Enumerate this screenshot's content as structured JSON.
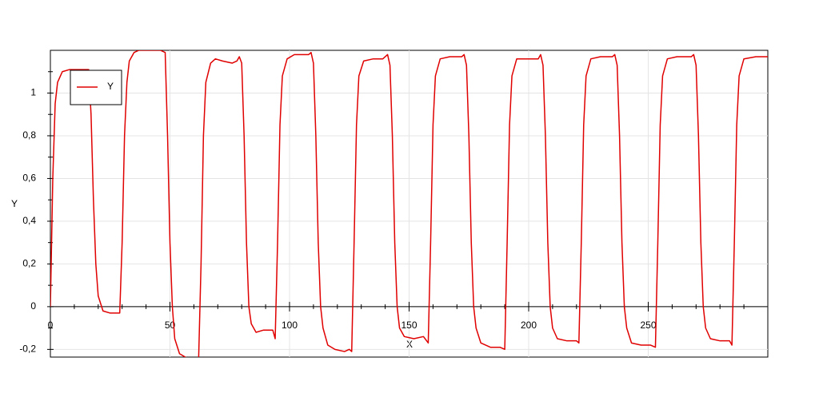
{
  "chart_data": {
    "type": "line",
    "x_label": "X",
    "y_label": "Y",
    "xlim": [
      0,
      300
    ],
    "ylim": [
      -0.236,
      1.2
    ],
    "xticks": [
      0,
      50,
      100,
      150,
      200,
      250
    ],
    "xticks_minor": [
      10,
      20,
      30,
      40,
      60,
      70,
      80,
      90,
      110,
      120,
      130,
      140,
      160,
      170,
      180,
      190,
      210,
      220,
      230,
      240,
      260,
      270,
      280,
      290
    ],
    "yticks": [
      {
        "value": -0.2,
        "label": "-0,2"
      },
      0,
      {
        "value": 0.2,
        "label": "0,2"
      },
      {
        "value": 0.4,
        "label": "0,4"
      },
      {
        "value": 0.6,
        "label": "0,6"
      },
      {
        "value": 0.8,
        "label": "0,8"
      },
      1
    ],
    "yticks_minor": [
      -0.1,
      0.1,
      0.3,
      0.5,
      0.7,
      0.9,
      1.1
    ],
    "grid": true,
    "legend": "upper left",
    "series": [
      {
        "name": "Y",
        "color": "#e00000",
        "x": [
          0,
          1,
          2,
          3,
          5,
          8,
          16,
          17,
          18,
          19,
          20,
          22,
          25,
          29,
          30,
          31,
          32,
          33,
          35,
          37,
          46,
          48,
          49,
          50,
          51,
          52,
          54,
          57,
          62,
          63,
          64,
          65,
          67,
          69,
          72,
          76,
          78,
          79,
          80,
          81,
          82,
          83,
          84,
          86,
          89,
          93,
          94,
          95,
          96,
          97,
          99,
          102,
          108,
          109,
          110,
          111,
          112,
          113,
          114,
          116,
          119,
          123,
          125,
          126,
          127,
          128,
          129,
          131,
          135,
          139,
          141,
          142,
          143,
          144,
          145,
          146,
          148,
          152,
          156,
          158,
          159,
          160,
          161,
          163,
          167,
          172,
          173,
          174,
          175,
          176,
          177,
          178,
          180,
          184,
          188,
          190,
          191,
          192,
          193,
          195,
          199,
          204,
          205,
          206,
          207,
          208,
          209,
          210,
          212,
          216,
          220,
          221,
          222,
          223,
          224,
          226,
          230,
          235,
          236,
          237,
          238,
          239,
          240,
          241,
          243,
          247,
          251,
          253,
          254,
          255,
          256,
          258,
          262,
          268,
          269,
          270,
          271,
          272,
          273,
          274,
          276,
          280,
          284,
          285,
          286,
          287,
          288,
          290,
          295,
          300
        ],
        "values": [
          0,
          0.6,
          0.95,
          1.05,
          1.1,
          1.11,
          1.11,
          0.9,
          0.5,
          0.2,
          0.05,
          -0.02,
          -0.03,
          -0.03,
          0.3,
          0.8,
          1.05,
          1.15,
          1.19,
          1.2,
          1.2,
          1.19,
          0.8,
          0.3,
          0,
          -0.15,
          -0.22,
          -0.24,
          -0.24,
          0.2,
          0.8,
          1.05,
          1.14,
          1.16,
          1.15,
          1.14,
          1.15,
          1.17,
          1.14,
          0.8,
          0.3,
          0,
          -0.08,
          -0.12,
          -0.11,
          -0.11,
          -0.15,
          0.3,
          0.85,
          1.08,
          1.16,
          1.18,
          1.18,
          1.19,
          1.14,
          0.8,
          0.3,
          0,
          -0.1,
          -0.18,
          -0.2,
          -0.21,
          -0.2,
          -0.21,
          0.3,
          0.85,
          1.08,
          1.15,
          1.16,
          1.16,
          1.18,
          1.13,
          0.8,
          0.3,
          0,
          -0.1,
          -0.14,
          -0.15,
          -0.14,
          -0.17,
          0.3,
          0.85,
          1.08,
          1.16,
          1.17,
          1.17,
          1.18,
          1.13,
          0.8,
          0.3,
          0,
          -0.1,
          -0.17,
          -0.19,
          -0.19,
          -0.2,
          0.3,
          0.85,
          1.08,
          1.16,
          1.16,
          1.16,
          1.18,
          1.13,
          0.8,
          0.3,
          0,
          -0.1,
          -0.15,
          -0.16,
          -0.16,
          -0.17,
          0.3,
          0.85,
          1.08,
          1.16,
          1.17,
          1.17,
          1.18,
          1.13,
          0.8,
          0.3,
          0,
          -0.1,
          -0.17,
          -0.18,
          -0.18,
          -0.19,
          0.3,
          0.85,
          1.08,
          1.16,
          1.17,
          1.17,
          1.18,
          1.13,
          0.8,
          0.3,
          0,
          -0.1,
          -0.15,
          -0.16,
          -0.16,
          -0.18,
          0.3,
          0.85,
          1.08,
          1.16,
          1.17,
          1.17
        ]
      }
    ]
  }
}
